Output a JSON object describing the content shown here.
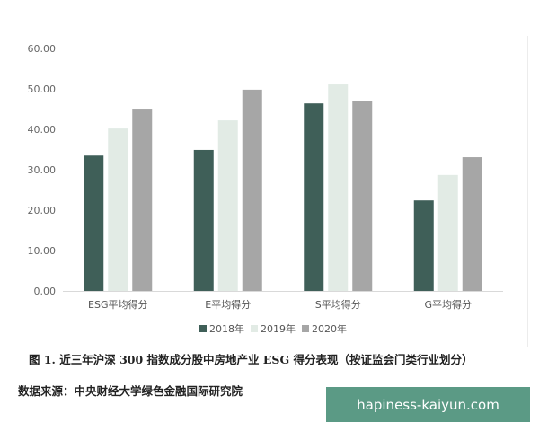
{
  "chart_data": {
    "type": "bar",
    "categories": [
      "ESG平均得分",
      "E平均得分",
      "S平均得分",
      "G平均得分"
    ],
    "series": [
      {
        "name": "2018年",
        "values": [
          33.5,
          34.9,
          46.4,
          22.4
        ],
        "color": "#3f5f58"
      },
      {
        "name": "2019年",
        "values": [
          40.2,
          42.2,
          51.1,
          28.7
        ],
        "color": "#e2ebe5"
      },
      {
        "name": "2020年",
        "values": [
          45.1,
          49.8,
          47.1,
          33.1
        ],
        "color": "#a6a6a6"
      }
    ],
    "yticks": [
      "0.00",
      "10.00",
      "20.00",
      "30.00",
      "40.00",
      "50.00",
      "60.00"
    ],
    "ylim": [
      0,
      60
    ],
    "grid": false,
    "legend": "bottom"
  },
  "caption": "图 1. 近三年沪深 300 指数成分股中房地产业 ESG 得分表现（按证监会门类行业划分）",
  "source": "数据来源：中央财经大学绿色金融国际研究院",
  "watermark": "hapiness-kaiyun.com"
}
